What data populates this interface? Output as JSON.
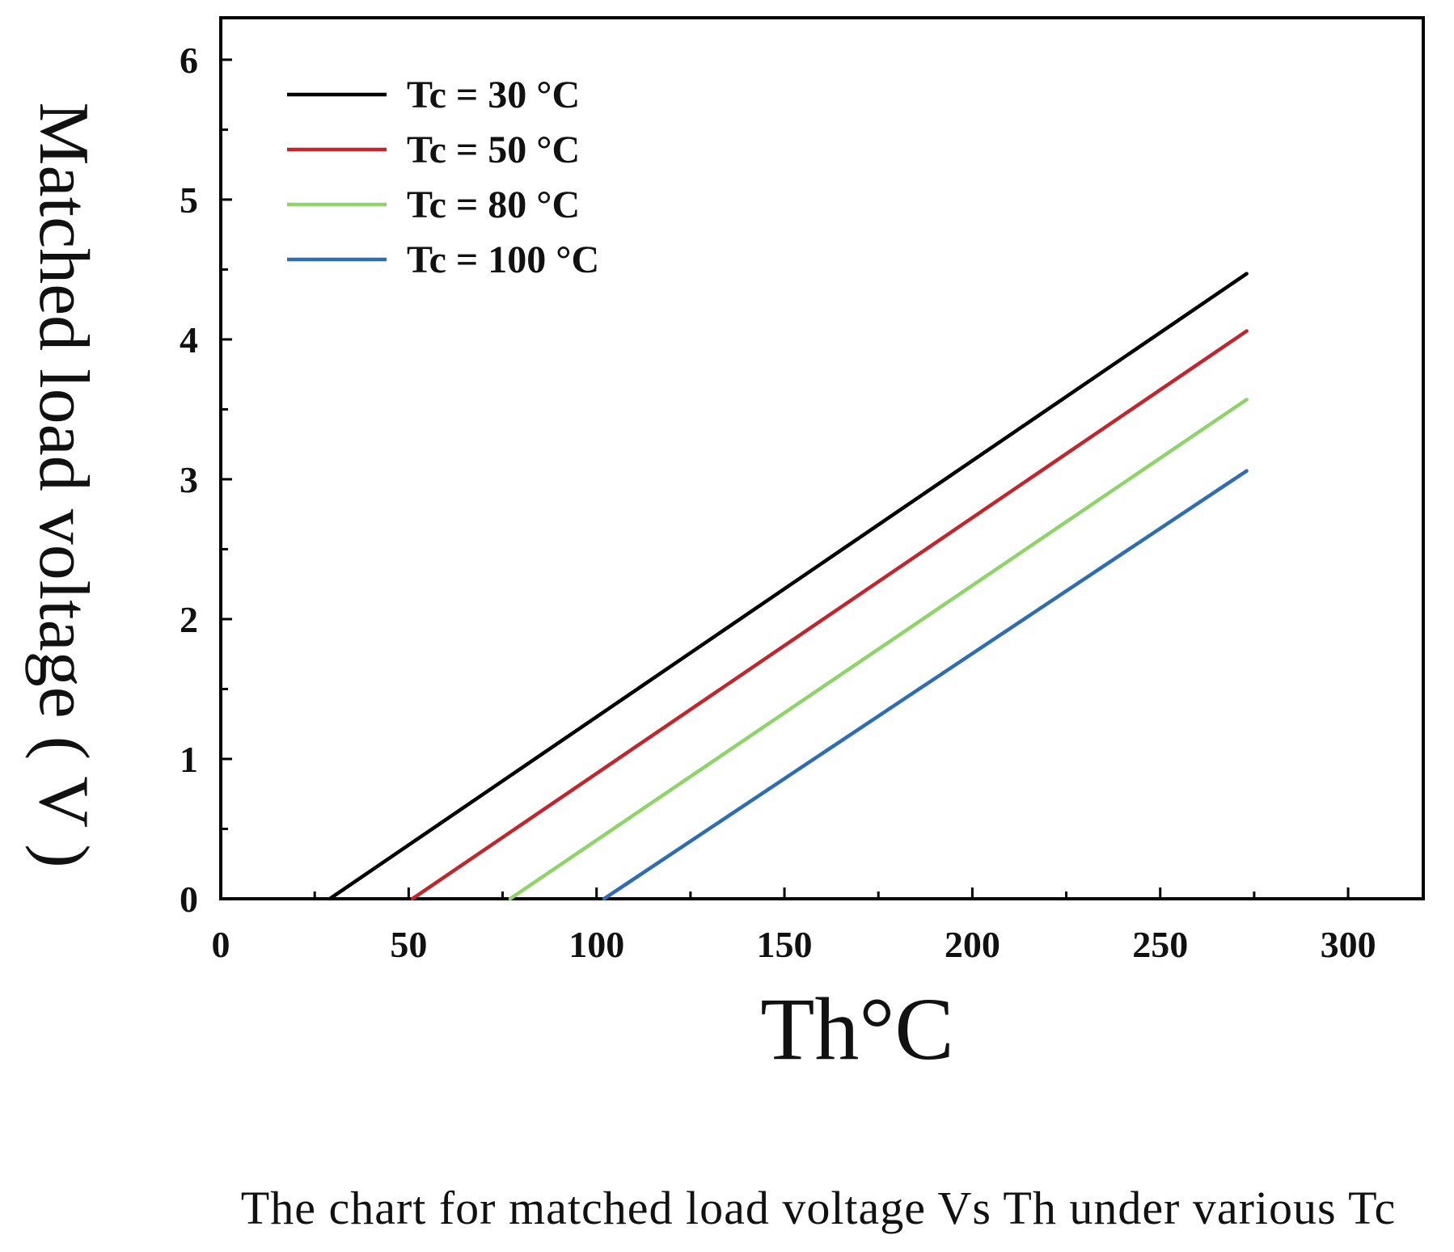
{
  "chart_data": {
    "type": "line",
    "title": "",
    "caption": "The chart for matched load voltage Vs Th under various Tc",
    "xlabel": "Th°C",
    "ylabel": "Matched load voltage ( V )",
    "xlim": [
      0,
      320
    ],
    "ylim": [
      0,
      6.3
    ],
    "xticks": [
      0,
      50,
      100,
      150,
      200,
      250,
      300
    ],
    "xtick_labels": [
      "0",
      "50",
      "100",
      "150",
      "200",
      "250",
      "300"
    ],
    "yticks": [
      0,
      1,
      2,
      3,
      4,
      5,
      6
    ],
    "ytick_labels": [
      "0",
      "1",
      "2",
      "3",
      "4",
      "5",
      "6"
    ],
    "grid": false,
    "legend_position": "top-left",
    "series": [
      {
        "name": "Tc = 30 °C",
        "color": "#000000",
        "x": [
          29,
          273
        ],
        "y": [
          0,
          4.47
        ]
      },
      {
        "name": "Tc = 50 °C",
        "color": "#c0272d",
        "x": [
          51,
          273
        ],
        "y": [
          0,
          4.06
        ]
      },
      {
        "name": "Tc = 80 °C",
        "color": "#8fd36b",
        "x": [
          77,
          273
        ],
        "y": [
          0,
          3.57
        ]
      },
      {
        "name": "Tc = 100 °C",
        "color": "#2f6db3",
        "x": [
          102,
          273
        ],
        "y": [
          0,
          3.06
        ]
      }
    ]
  }
}
